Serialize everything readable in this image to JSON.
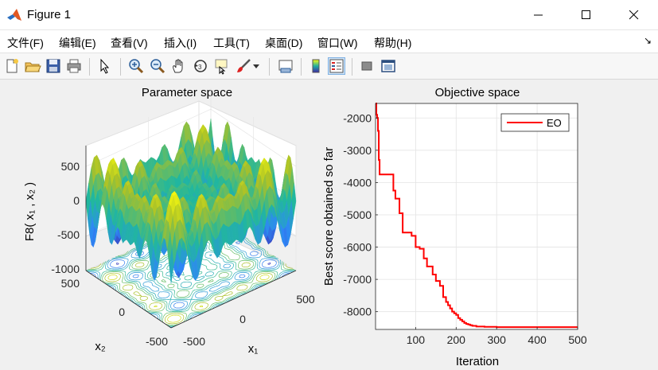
{
  "window": {
    "title": "Figure 1",
    "icon": "matlab-icon"
  },
  "menu": [
    {
      "label": "文件(F)"
    },
    {
      "label": "编辑(E)"
    },
    {
      "label": "查看(V)"
    },
    {
      "label": "插入(I)"
    },
    {
      "label": "工具(T)"
    },
    {
      "label": "桌面(D)"
    },
    {
      "label": "窗口(W)"
    },
    {
      "label": "帮助(H)"
    }
  ],
  "menu_arrow": "↘",
  "toolbar": [
    "new-figure-icon",
    "open-file-icon",
    "save-icon",
    "print-icon",
    "pointer-icon",
    "zoom-in-icon",
    "zoom-out-icon",
    "pan-hand-icon",
    "rotate-3d-icon",
    "data-cursor-icon",
    "brush-icon",
    "link-plot-icon",
    "colorbar-icon",
    "legend-icon",
    "hide-plot-tools-icon",
    "show-plot-tools-icon"
  ],
  "chart_data": [
    {
      "type": "surface",
      "title": "Parameter space",
      "xlabel": "x₁",
      "ylabel": "x₂",
      "zlabel": "F8( x₁ , x₂ )",
      "xlim": [
        -500,
        500
      ],
      "ylim": [
        -500,
        500
      ],
      "zlim": [
        -1000,
        800
      ],
      "xticks": [
        "-500",
        "0",
        "500"
      ],
      "yticks": [
        "-500",
        "0",
        "500"
      ],
      "zticks": [
        "-1000",
        "-500",
        "0",
        "500"
      ],
      "colormap": "parula",
      "contour_on_base": true,
      "grid": true
    },
    {
      "type": "line",
      "title": "Objective space",
      "xlabel": "Iteration",
      "ylabel": "Best score obtained so far",
      "xlim": [
        1,
        500
      ],
      "ylim": [
        -8550,
        -1550
      ],
      "xticks": [
        100,
        200,
        300,
        400,
        500
      ],
      "yticks": [
        -2000,
        -3000,
        -4000,
        -5000,
        -6000,
        -7000,
        -8000
      ],
      "grid": true,
      "legend_placement": "top-right",
      "series": [
        {
          "name": "EO",
          "color": "#ff0000",
          "x": [
            1,
            3,
            5,
            7,
            9,
            11,
            30,
            45,
            50,
            55,
            60,
            68,
            75,
            90,
            100,
            110,
            120,
            128,
            135,
            142,
            150,
            160,
            168,
            175,
            180,
            185,
            190,
            195,
            200,
            205,
            210,
            215,
            220,
            225,
            230,
            235,
            240,
            250,
            270,
            300,
            350,
            400,
            450,
            500
          ],
          "values": [
            -1550,
            -1900,
            -2000,
            -2400,
            -3300,
            -3750,
            -3750,
            -4250,
            -4500,
            -4500,
            -4950,
            -5550,
            -5550,
            -5650,
            -6000,
            -6050,
            -6350,
            -6600,
            -6600,
            -6850,
            -7050,
            -7200,
            -7550,
            -7700,
            -7800,
            -7900,
            -8000,
            -8050,
            -8100,
            -8200,
            -8250,
            -8300,
            -8350,
            -8380,
            -8400,
            -8420,
            -8440,
            -8460,
            -8470,
            -8480,
            -8480,
            -8480,
            -8480,
            -8480
          ]
        }
      ]
    }
  ]
}
